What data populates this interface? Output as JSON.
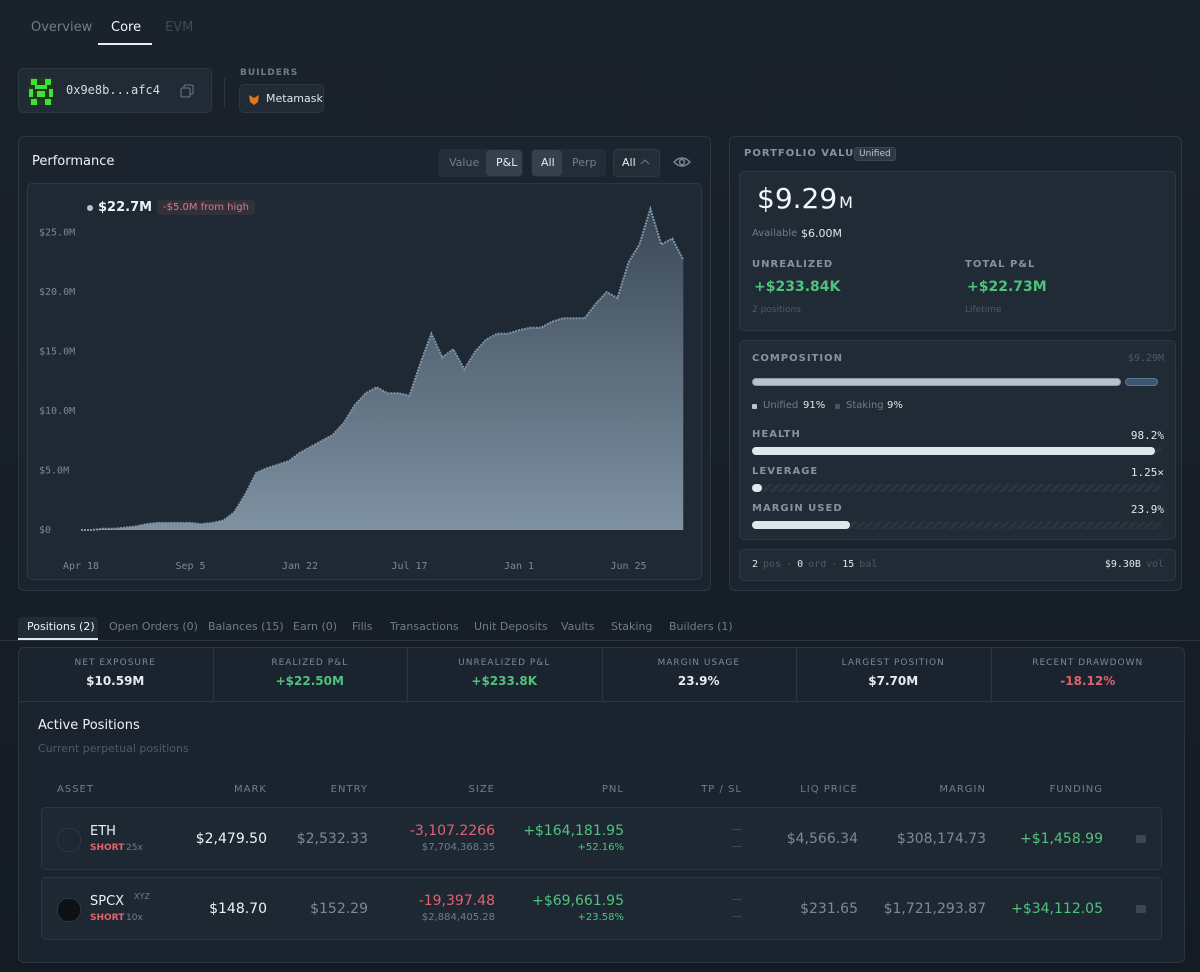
{
  "nav": {
    "tabs": [
      "Overview",
      "Core",
      "EVM"
    ]
  },
  "wallet": {
    "address": "0x9e8b...afc4"
  },
  "builders": {
    "label": "BUILDERS",
    "items": [
      "Metamask"
    ]
  },
  "performance": {
    "title": "Performance",
    "mode_toggle": [
      "Value",
      "P&L"
    ],
    "market_toggle": [
      "All",
      "Perp"
    ],
    "range": "All",
    "current": "$22.7M",
    "from_high": "-$5.0M from high"
  },
  "chart_data": {
    "type": "area",
    "categories": [
      "Apr 18",
      null,
      null,
      null,
      null,
      null,
      null,
      null,
      null,
      null,
      "Sep 5",
      null,
      null,
      null,
      null,
      null,
      null,
      null,
      null,
      null,
      "Jan 22",
      null,
      null,
      null,
      null,
      null,
      null,
      null,
      null,
      null,
      "Jul 17",
      null,
      null,
      null,
      null,
      null,
      null,
      null,
      null,
      null,
      "Jan 1",
      null,
      null,
      null,
      null,
      null,
      null,
      null,
      null,
      null,
      "Jun 25",
      null,
      null,
      null,
      null,
      null
    ],
    "values": [
      0,
      0,
      0.1,
      0.1,
      0.2,
      0.3,
      0.5,
      0.6,
      0.6,
      0.6,
      0.6,
      0.5,
      0.6,
      0.8,
      1.5,
      3.0,
      4.8,
      5.2,
      5.5,
      5.8,
      6.5,
      7.0,
      7.5,
      8.0,
      9.0,
      10.5,
      11.5,
      12.0,
      11.5,
      11.5,
      11.3,
      14.0,
      16.5,
      14.5,
      15.2,
      13.5,
      15.0,
      16.0,
      16.5,
      16.5,
      16.8,
      17.0,
      17.0,
      17.5,
      17.8,
      17.8,
      17.8,
      19.0,
      20.0,
      19.5,
      22.5,
      24.0,
      27.0,
      24.0,
      24.5,
      22.7
    ],
    "color": "#7f95a8",
    "ylim": [
      0,
      28.5
    ],
    "yticks": [
      {
        "value": 0,
        "label": "$0"
      },
      {
        "value": 5,
        "label": "$5.0M"
      },
      {
        "value": 10,
        "label": "$10.0M"
      },
      {
        "value": 15,
        "label": "$15.0M"
      },
      {
        "value": 20,
        "label": "$20.0M"
      },
      {
        "value": 25,
        "label": "$25.0M"
      }
    ],
    "grid": false
  },
  "portfolio": {
    "title": "PORTFOLIO VALUE",
    "badge": "Unified",
    "value": "$9.29",
    "unit": "M",
    "available_label": "Available",
    "available": "$6.00M",
    "unrealized_label": "UNREALIZED",
    "unrealized": "+$233.84K",
    "unrealized_sub": "2 positions",
    "total_label": "TOTAL P&L",
    "total": "+$22.73M",
    "total_sub": "Lifetime"
  },
  "composition": {
    "title": "COMPOSITION",
    "total": "$9.29M",
    "items": [
      {
        "name": "Unified",
        "value": 91,
        "label": "91%"
      },
      {
        "name": "Staking",
        "value": 9,
        "label": "9%"
      }
    ],
    "metrics": [
      {
        "name": "HEALTH",
        "value": 98.2,
        "label": "98.2%"
      },
      {
        "name": "LEVERAGE",
        "value": 1.25,
        "label": "1.25×"
      },
      {
        "name": "MARGIN USED",
        "value": 23.9,
        "label": "23.9%"
      }
    ]
  },
  "footer": {
    "items": [
      {
        "value": "2",
        "unit": "pos"
      },
      {
        "value": "0",
        "unit": "ord"
      },
      {
        "value": "15",
        "unit": "bal"
      }
    ],
    "separator": "·",
    "volume": "$9.30B",
    "volume_unit": "vol"
  },
  "bottom_tabs": [
    "Positions (2)",
    "Open Orders (0)",
    "Balances (15)",
    "Earn (0)",
    "Fills",
    "Transactions",
    "Unit Deposits",
    "Vaults",
    "Staking",
    "Builders (1)"
  ],
  "stats": [
    {
      "label": "NET EXPOSURE",
      "value": "$10.59M"
    },
    {
      "label": "REALIZED P&L",
      "value": "+$22.50M"
    },
    {
      "label": "UNREALIZED P&L",
      "value": "+$233.8K"
    },
    {
      "label": "MARGIN USAGE",
      "value": "23.9%"
    },
    {
      "label": "LARGEST POSITION",
      "value": "$7.70M"
    },
    {
      "label": "RECENT DRAWDOWN",
      "value": "-18.12%"
    }
  ],
  "positions": {
    "title": "Active Positions",
    "subtitle": "Current perpetual positions",
    "columns": [
      "ASSET",
      "MARK",
      "ENTRY",
      "SIZE",
      "PNL",
      "TP / SL",
      "LIQ PRICE",
      "MARGIN",
      "FUNDING"
    ],
    "rows": [
      {
        "asset": "ETH",
        "side": "SHORT",
        "leverage": "25x",
        "mark": "$2,479.50",
        "entry": "$2,532.33",
        "size": "-3,107.2266",
        "size_usd": "$7,704,368.35",
        "pnl": "+$164,181.95",
        "pnl_pct": "+52.16%",
        "tp": "—",
        "sl": "—",
        "liq": "$4,566.34",
        "margin": "$308,174.73",
        "funding": "+$1,458.99"
      },
      {
        "asset": "SPCX",
        "tag": "XYZ",
        "side": "SHORT",
        "leverage": "10x",
        "mark": "$148.70",
        "entry": "$152.29",
        "size": "-19,397.48",
        "size_usd": "$2,884,405.28",
        "pnl": "+$69,661.95",
        "pnl_pct": "+23.58%",
        "tp": "—",
        "sl": "—",
        "liq": "$231.65",
        "margin": "$1,721,293.87",
        "funding": "+$34,112.05"
      }
    ]
  }
}
